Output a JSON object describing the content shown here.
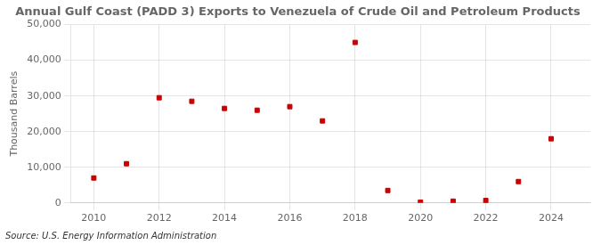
{
  "chart_data": {
    "type": "scatter",
    "title": "Annual Gulf Coast (PADD 3) Exports to Venezuela of Crude Oil and Petroleum Products",
    "ylabel": "Thousand Barrels",
    "annotation": "Source: U.S. Energy Information Administration",
    "x": [
      2010,
      2011,
      2012,
      2013,
      2014,
      2015,
      2016,
      2017,
      2018,
      2019,
      2020,
      2021,
      2022,
      2023,
      2024
    ],
    "values": [
      7000,
      11000,
      29500,
      28500,
      26500,
      26000,
      27000,
      23000,
      45000,
      3500,
      200,
      500,
      700,
      6000,
      18000
    ],
    "color": "#cc0000",
    "marker": "square",
    "xlim": [
      2009.3,
      2025.2
    ],
    "xticks": [
      2010,
      2012,
      2014,
      2016,
      2018,
      2020,
      2022,
      2024
    ],
    "ylim": [
      0,
      50000
    ],
    "yticks": [
      0,
      {
        "value": 10000,
        "label": "10,000"
      },
      {
        "value": 20000,
        "label": "20,000"
      },
      {
        "value": 30000,
        "label": "30,000"
      },
      {
        "value": 40000,
        "label": "40,000"
      },
      {
        "value": 50000,
        "label": "50,000"
      }
    ],
    "grid": true
  }
}
